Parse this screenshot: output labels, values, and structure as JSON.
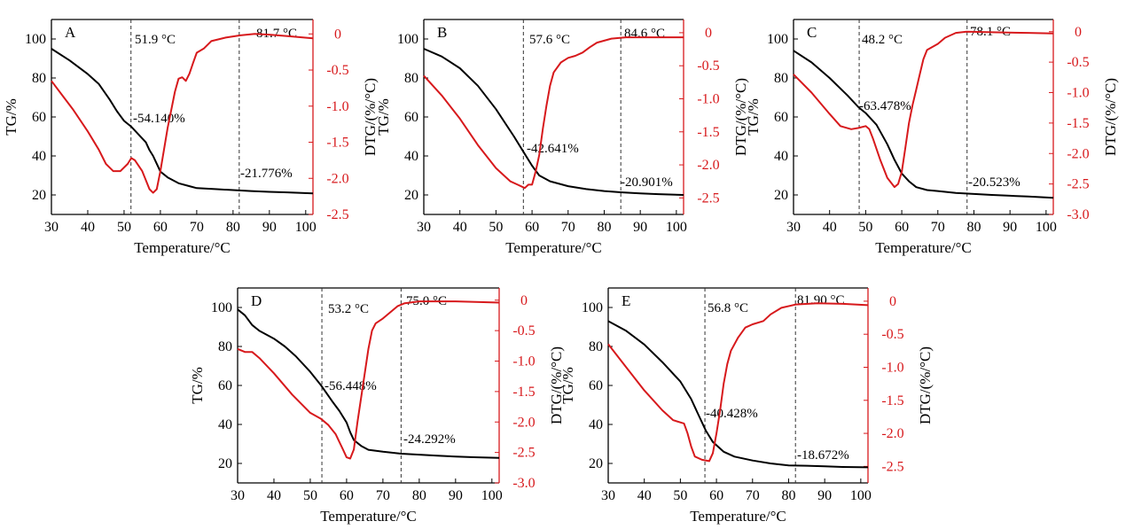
{
  "colors": {
    "tg": "#000000",
    "dtg": "#d7191c",
    "right_axis": "#d7191c"
  },
  "chart_data": [
    {
      "type": "line",
      "panel": "A",
      "xlabel": "Temperature/°C",
      "ylabel": "TG/%",
      "y2label": "DTG/(%/°C)",
      "xlim": [
        30,
        102
      ],
      "ylim": [
        10,
        110
      ],
      "y2lim": [
        -2.5,
        0.2
      ],
      "xticks": [
        30,
        40,
        50,
        60,
        70,
        80,
        90,
        100
      ],
      "yticks": [
        20,
        40,
        60,
        80,
        100
      ],
      "y2ticks": [
        -2.5,
        -2.0,
        -1.5,
        -1.0,
        -0.5,
        0
      ],
      "y2ticklabels": [
        "-2.5",
        "-2.0",
        "-1.5",
        "-1.0",
        "-0.5",
        "0"
      ],
      "vlines": [
        51.9,
        81.7
      ],
      "vline_labels": [
        "51.9 °C",
        "81.7 °C"
      ],
      "mass_loss_labels": [
        "-54.140%",
        "-21.776%"
      ],
      "tg": [
        [
          30,
          95
        ],
        [
          35,
          89
        ],
        [
          40,
          82
        ],
        [
          43,
          77
        ],
        [
          46,
          69
        ],
        [
          48,
          63
        ],
        [
          50,
          58
        ],
        [
          52,
          55
        ],
        [
          54,
          51
        ],
        [
          56,
          47
        ],
        [
          57,
          43
        ],
        [
          58,
          40
        ],
        [
          59,
          36
        ],
        [
          60,
          32
        ],
        [
          62,
          29
        ],
        [
          65,
          26
        ],
        [
          68,
          24.5
        ],
        [
          70,
          23.5
        ],
        [
          75,
          23
        ],
        [
          80,
          22.5
        ],
        [
          85,
          22
        ],
        [
          90,
          21.6
        ],
        [
          95,
          21.3
        ],
        [
          102,
          20.8
        ]
      ],
      "dtg": [
        [
          30,
          -0.65
        ],
        [
          33,
          -0.85
        ],
        [
          36,
          -1.05
        ],
        [
          40,
          -1.35
        ],
        [
          43,
          -1.6
        ],
        [
          45,
          -1.8
        ],
        [
          47,
          -1.9
        ],
        [
          49,
          -1.9
        ],
        [
          51,
          -1.8
        ],
        [
          52,
          -1.72
        ],
        [
          53,
          -1.75
        ],
        [
          55,
          -1.9
        ],
        [
          57,
          -2.15
        ],
        [
          58,
          -2.2
        ],
        [
          59,
          -2.15
        ],
        [
          60,
          -1.9
        ],
        [
          61,
          -1.6
        ],
        [
          62,
          -1.3
        ],
        [
          63,
          -1.05
        ],
        [
          64,
          -0.8
        ],
        [
          65,
          -0.62
        ],
        [
          66,
          -0.6
        ],
        [
          67,
          -0.65
        ],
        [
          68,
          -0.55
        ],
        [
          69,
          -0.4
        ],
        [
          70,
          -0.26
        ],
        [
          72,
          -0.2
        ],
        [
          74,
          -0.1
        ],
        [
          78,
          -0.05
        ],
        [
          82,
          -0.02
        ],
        [
          86,
          0.0
        ],
        [
          90,
          -0.01
        ],
        [
          95,
          -0.03
        ],
        [
          102,
          -0.06
        ]
      ]
    },
    {
      "type": "line",
      "panel": "B",
      "xlabel": "Temperature/°C",
      "ylabel": "TG/%",
      "y2label": "DTG/(%/°C)",
      "xlim": [
        30,
        102
      ],
      "ylim": [
        10,
        110
      ],
      "y2lim": [
        -2.75,
        0.2
      ],
      "xticks": [
        30,
        40,
        50,
        60,
        70,
        80,
        90,
        100
      ],
      "yticks": [
        20,
        40,
        60,
        80,
        100
      ],
      "y2ticks": [
        -2.5,
        -2.0,
        -1.5,
        -1.0,
        -0.5,
        0
      ],
      "y2ticklabels": [
        "-2.5",
        "-2.0",
        "-1.5",
        "-1.0",
        "-0.5",
        "0"
      ],
      "vlines": [
        57.6,
        84.6
      ],
      "vline_labels": [
        "57.6 °C",
        "84.6 °C"
      ],
      "mass_loss_labels": [
        "-42.641%",
        "-20.901%"
      ],
      "tg": [
        [
          30,
          95
        ],
        [
          35,
          91
        ],
        [
          40,
          85
        ],
        [
          45,
          76
        ],
        [
          50,
          64
        ],
        [
          55,
          50
        ],
        [
          58,
          41
        ],
        [
          60,
          35
        ],
        [
          62,
          30
        ],
        [
          65,
          27
        ],
        [
          70,
          24.5
        ],
        [
          75,
          23
        ],
        [
          80,
          22
        ],
        [
          85,
          21.3
        ],
        [
          90,
          20.8
        ],
        [
          95,
          20.4
        ],
        [
          102,
          20
        ]
      ],
      "dtg": [
        [
          30,
          -0.65
        ],
        [
          35,
          -0.95
        ],
        [
          40,
          -1.3
        ],
        [
          45,
          -1.7
        ],
        [
          50,
          -2.05
        ],
        [
          54,
          -2.25
        ],
        [
          56,
          -2.3
        ],
        [
          58,
          -2.35
        ],
        [
          59,
          -2.3
        ],
        [
          60,
          -2.3
        ],
        [
          61,
          -2.1
        ],
        [
          62,
          -1.85
        ],
        [
          63,
          -1.45
        ],
        [
          64,
          -1.1
        ],
        [
          65,
          -0.8
        ],
        [
          66,
          -0.6
        ],
        [
          68,
          -0.45
        ],
        [
          70,
          -0.38
        ],
        [
          72,
          -0.35
        ],
        [
          74,
          -0.3
        ],
        [
          76,
          -0.22
        ],
        [
          78,
          -0.15
        ],
        [
          82,
          -0.09
        ],
        [
          86,
          -0.07
        ],
        [
          95,
          -0.07
        ],
        [
          102,
          -0.07
        ]
      ]
    },
    {
      "type": "line",
      "panel": "C",
      "xlabel": "Temperature/°C",
      "ylabel": "TG/%",
      "y2label": "DTG/(%/°C)",
      "xlim": [
        30,
        102
      ],
      "ylim": [
        10,
        110
      ],
      "y2lim": [
        -3.0,
        0.2
      ],
      "xticks": [
        30,
        40,
        50,
        60,
        70,
        80,
        90,
        100
      ],
      "yticks": [
        20,
        40,
        60,
        80,
        100
      ],
      "y2ticks": [
        -3.0,
        -2.5,
        -2.0,
        -1.5,
        -1.0,
        -0.5,
        0
      ],
      "y2ticklabels": [
        "-3.0",
        "-2.5",
        "-2.0",
        "-1.5",
        "-1.0",
        "-0.5",
        "0"
      ],
      "vlines": [
        48.2,
        78.1
      ],
      "vline_labels": [
        "48.2 °C",
        "78.1 °C"
      ],
      "mass_loss_labels": [
        "-63.478%",
        "-20.523%"
      ],
      "tg": [
        [
          30,
          94
        ],
        [
          35,
          88
        ],
        [
          40,
          80
        ],
        [
          45,
          71
        ],
        [
          48,
          65
        ],
        [
          50,
          62
        ],
        [
          53,
          56
        ],
        [
          56,
          46
        ],
        [
          58,
          38
        ],
        [
          60,
          31
        ],
        [
          62,
          27
        ],
        [
          64,
          24
        ],
        [
          67,
          22.5
        ],
        [
          70,
          22
        ],
        [
          75,
          21
        ],
        [
          80,
          20.5
        ],
        [
          85,
          20
        ],
        [
          90,
          19.6
        ],
        [
          95,
          19.2
        ],
        [
          102,
          18.5
        ]
      ],
      "dtg": [
        [
          30,
          -0.7
        ],
        [
          35,
          -1.0
        ],
        [
          40,
          -1.35
        ],
        [
          43,
          -1.55
        ],
        [
          46,
          -1.6
        ],
        [
          48,
          -1.58
        ],
        [
          50,
          -1.55
        ],
        [
          51,
          -1.6
        ],
        [
          52,
          -1.75
        ],
        [
          54,
          -2.1
        ],
        [
          56,
          -2.4
        ],
        [
          58,
          -2.55
        ],
        [
          59,
          -2.5
        ],
        [
          60,
          -2.3
        ],
        [
          61,
          -1.9
        ],
        [
          62,
          -1.5
        ],
        [
          63,
          -1.2
        ],
        [
          64,
          -0.95
        ],
        [
          65,
          -0.7
        ],
        [
          66,
          -0.45
        ],
        [
          67,
          -0.3
        ],
        [
          70,
          -0.2
        ],
        [
          72,
          -0.1
        ],
        [
          75,
          -0.02
        ],
        [
          78,
          0.0
        ],
        [
          85,
          -0.01
        ],
        [
          95,
          -0.02
        ],
        [
          102,
          -0.03
        ]
      ]
    },
    {
      "type": "line",
      "panel": "D",
      "xlabel": "Temperature/°C",
      "ylabel": "TG/%",
      "y2label": "DTG/(%/°C)",
      "xlim": [
        30,
        102
      ],
      "ylim": [
        10,
        110
      ],
      "y2lim": [
        -3.0,
        0.2
      ],
      "xticks": [
        30,
        40,
        50,
        60,
        70,
        80,
        90,
        100
      ],
      "yticks": [
        20,
        40,
        60,
        80,
        100
      ],
      "y2ticks": [
        -3.0,
        -2.5,
        -2.0,
        -1.5,
        -1.0,
        -0.5,
        0
      ],
      "y2ticklabels": [
        "-3.0",
        "-2.5",
        "-2.0",
        "-1.5",
        "-1.0",
        "-0.5",
        "0"
      ],
      "vlines": [
        53.2,
        75.0
      ],
      "vline_labels": [
        "53.2 °C",
        "75.0 °C"
      ],
      "mass_loss_labels": [
        "-56.448%",
        "-24.292%"
      ],
      "tg": [
        [
          30,
          99
        ],
        [
          32,
          96
        ],
        [
          34,
          91
        ],
        [
          36,
          88
        ],
        [
          40,
          84
        ],
        [
          43,
          80
        ],
        [
          46,
          75
        ],
        [
          50,
          67
        ],
        [
          53,
          60
        ],
        [
          56,
          52
        ],
        [
          58,
          47
        ],
        [
          60,
          41
        ],
        [
          61,
          36
        ],
        [
          62,
          32
        ],
        [
          64,
          29
        ],
        [
          66,
          27
        ],
        [
          70,
          26
        ],
        [
          75,
          25
        ],
        [
          80,
          24.5
        ],
        [
          85,
          24
        ],
        [
          90,
          23.5
        ],
        [
          95,
          23.2
        ],
        [
          102,
          22.8
        ]
      ],
      "dtg": [
        [
          30,
          -0.8
        ],
        [
          32,
          -0.85
        ],
        [
          34,
          -0.85
        ],
        [
          36,
          -0.95
        ],
        [
          40,
          -1.2
        ],
        [
          45,
          -1.55
        ],
        [
          50,
          -1.85
        ],
        [
          53,
          -1.95
        ],
        [
          55,
          -2.05
        ],
        [
          57,
          -2.2
        ],
        [
          59,
          -2.45
        ],
        [
          60,
          -2.58
        ],
        [
          61,
          -2.6
        ],
        [
          62,
          -2.45
        ],
        [
          63,
          -2.0
        ],
        [
          64,
          -1.6
        ],
        [
          65,
          -1.2
        ],
        [
          66,
          -0.8
        ],
        [
          67,
          -0.5
        ],
        [
          68,
          -0.38
        ],
        [
          70,
          -0.3
        ],
        [
          72,
          -0.2
        ],
        [
          74,
          -0.1
        ],
        [
          76,
          -0.05
        ],
        [
          80,
          -0.02
        ],
        [
          90,
          -0.02
        ],
        [
          102,
          -0.04
        ]
      ]
    },
    {
      "type": "line",
      "panel": "E",
      "xlabel": "Temperature/°C",
      "ylabel": "TG/%",
      "y2label": "DTG/(%/°C)",
      "xlim": [
        30,
        102
      ],
      "ylim": [
        10,
        110
      ],
      "y2lim": [
        -2.75,
        0.2
      ],
      "xticks": [
        30,
        40,
        50,
        60,
        70,
        80,
        90,
        100
      ],
      "yticks": [
        20,
        40,
        60,
        80,
        100
      ],
      "y2ticks": [
        -2.5,
        -2.0,
        -1.5,
        -1.0,
        -0.5,
        0
      ],
      "y2ticklabels": [
        "-2.5",
        "-2.0",
        "-1.5",
        "-1.0",
        "-0.5",
        "0"
      ],
      "vlines": [
        56.8,
        81.9
      ],
      "vline_labels": [
        "56.8 °C",
        "81.90 °C"
      ],
      "mass_loss_labels": [
        "-40.428%",
        "-18.672%"
      ],
      "tg": [
        [
          30,
          93
        ],
        [
          35,
          88
        ],
        [
          40,
          81
        ],
        [
          45,
          72
        ],
        [
          50,
          62
        ],
        [
          53,
          53
        ],
        [
          55,
          45
        ],
        [
          57,
          37
        ],
        [
          59,
          31
        ],
        [
          62,
          26
        ],
        [
          65,
          23.5
        ],
        [
          70,
          21.5
        ],
        [
          75,
          20
        ],
        [
          80,
          19
        ],
        [
          85,
          18.8
        ],
        [
          90,
          18.5
        ],
        [
          95,
          18.2
        ],
        [
          102,
          18
        ]
      ],
      "dtg": [
        [
          30,
          -0.65
        ],
        [
          35,
          -1.0
        ],
        [
          40,
          -1.35
        ],
        [
          45,
          -1.65
        ],
        [
          48,
          -1.8
        ],
        [
          51,
          -1.85
        ],
        [
          52,
          -2.0
        ],
        [
          53,
          -2.2
        ],
        [
          54,
          -2.35
        ],
        [
          56,
          -2.4
        ],
        [
          58,
          -2.42
        ],
        [
          59,
          -2.3
        ],
        [
          60,
          -2.0
        ],
        [
          61,
          -1.65
        ],
        [
          62,
          -1.25
        ],
        [
          63,
          -0.95
        ],
        [
          64,
          -0.75
        ],
        [
          66,
          -0.55
        ],
        [
          68,
          -0.4
        ],
        [
          70,
          -0.35
        ],
        [
          73,
          -0.3
        ],
        [
          75,
          -0.2
        ],
        [
          78,
          -0.1
        ],
        [
          82,
          -0.05
        ],
        [
          88,
          -0.03
        ],
        [
          95,
          -0.04
        ],
        [
          102,
          -0.06
        ]
      ]
    }
  ]
}
